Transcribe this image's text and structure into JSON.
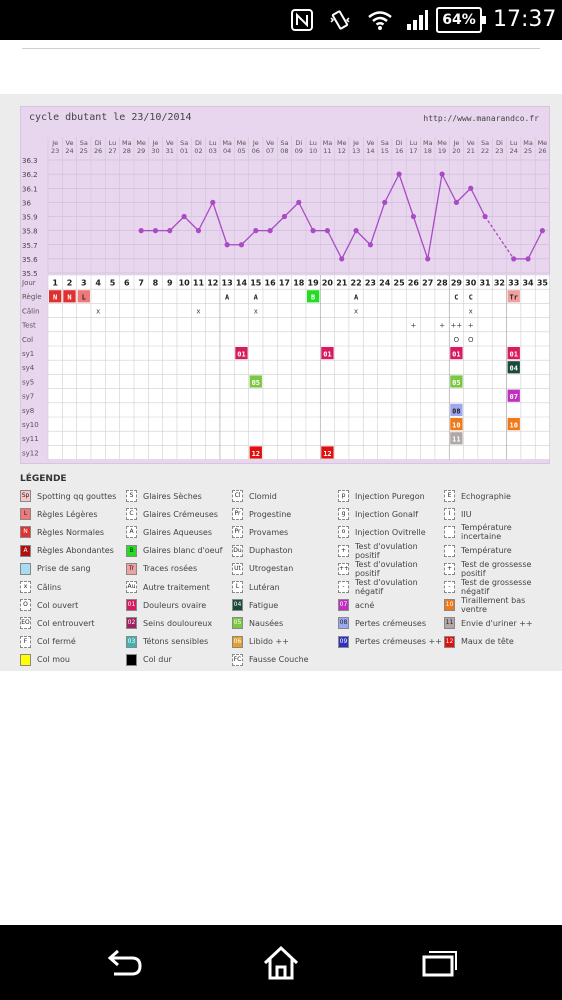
{
  "status_bar": {
    "time": "17:37",
    "battery": "64%",
    "icons": [
      "nfc-icon",
      "vibrate-icon",
      "wifi-icon",
      "signal-icon"
    ]
  },
  "chart": {
    "title": "cycle dbutant le 23/10/2014",
    "url": "http://www.manarandco.fr",
    "day_names": [
      "Je",
      "Ve",
      "Sa",
      "Di",
      "Lu",
      "Ma",
      "Me",
      "Je",
      "Ve",
      "Sa",
      "Di",
      "Lu",
      "Ma",
      "Me",
      "Je",
      "Ve",
      "Sa",
      "Di",
      "Lu",
      "Ma",
      "Me",
      "Je",
      "Ve",
      "Sa",
      "Di",
      "Lu",
      "Ma",
      "Me",
      "Je",
      "Ve",
      "Sa",
      "Di",
      "Lu",
      "Ma",
      "Me"
    ],
    "dates": [
      "23",
      "24",
      "25",
      "26",
      "27",
      "28",
      "29",
      "30",
      "31",
      "01",
      "02",
      "03",
      "04",
      "05",
      "06",
      "07",
      "08",
      "09",
      "10",
      "11",
      "12",
      "13",
      "14",
      "15",
      "16",
      "17",
      "18",
      "19",
      "20",
      "21",
      "22",
      "23",
      "24",
      "25",
      "26"
    ],
    "row_labels": [
      "Jour",
      "Règle",
      "Câlin",
      "Test",
      "Col",
      "sy1",
      "sy4",
      "sy5",
      "sy7",
      "sy8",
      "sy10",
      "sy11",
      "sy12"
    ],
    "temp_ticks": [
      "36.3",
      "36.2",
      "36.1",
      "36",
      "35.9",
      "35.8",
      "35.7",
      "35.6",
      "35.5"
    ],
    "cycle_days": [
      "1",
      "2",
      "3",
      "4",
      "5",
      "6",
      "7",
      "8",
      "9",
      "10",
      "11",
      "12",
      "13",
      "14",
      "15",
      "16",
      "17",
      "18",
      "19",
      "20",
      "21",
      "22",
      "23",
      "24",
      "25",
      "26",
      "27",
      "28",
      "29",
      "30",
      "31",
      "32",
      "33",
      "34",
      "35"
    ],
    "temps": [
      null,
      null,
      null,
      null,
      null,
      null,
      35.8,
      35.8,
      35.8,
      35.9,
      35.8,
      36.0,
      35.7,
      35.7,
      35.8,
      35.8,
      35.9,
      36.0,
      35.8,
      35.8,
      35.6,
      35.8,
      35.7,
      36.0,
      36.2,
      35.9,
      35.6,
      36.2,
      36.0,
      36.1,
      35.9,
      null,
      35.6,
      35.6,
      35.8
    ],
    "regle_cells": [
      {
        "col": 1,
        "text": "N",
        "color": "#e03030"
      },
      {
        "col": 2,
        "text": "N",
        "color": "#e03030"
      },
      {
        "col": 3,
        "text": "L",
        "color": "#f07878"
      },
      {
        "col": 13,
        "text": "A",
        "color": "#ffffff"
      },
      {
        "col": 15,
        "text": "A",
        "color": "#ffffff"
      },
      {
        "col": 19,
        "text": "B",
        "color": "#22dd22"
      },
      {
        "col": 22,
        "text": "A",
        "color": "#ffffff"
      },
      {
        "col": 29,
        "text": "C",
        "color": "#ffffff"
      },
      {
        "col": 30,
        "text": "C",
        "color": "#ffffff"
      },
      {
        "col": 33,
        "text": "Tr",
        "color": "#f0a0a0"
      }
    ],
    "calin_cols": [
      4,
      11,
      15,
      22,
      30
    ],
    "calin_mark": "x",
    "test_cells": [
      {
        "col": 26,
        "text": "+"
      },
      {
        "col": 28,
        "text": "+"
      },
      {
        "col": 29,
        "text": "++"
      },
      {
        "col": 30,
        "text": "+"
      }
    ],
    "col_cells": [
      {
        "col": 29,
        "text": "O"
      },
      {
        "col": 30,
        "text": "O"
      }
    ],
    "sym_cells": [
      {
        "row": 5,
        "col": 14,
        "text": "01",
        "color": "#d81b60"
      },
      {
        "row": 5,
        "col": 20,
        "text": "01",
        "color": "#d81b60"
      },
      {
        "row": 5,
        "col": 29,
        "text": "01",
        "color": "#d81b60"
      },
      {
        "row": 5,
        "col": 33,
        "text": "01",
        "color": "#d81b60"
      },
      {
        "row": 6,
        "col": 33,
        "text": "04",
        "color": "#1a4a3a"
      },
      {
        "row": 7,
        "col": 15,
        "text": "05",
        "color": "#7cc843"
      },
      {
        "row": 7,
        "col": 29,
        "text": "05",
        "color": "#7cc843"
      },
      {
        "row": 8,
        "col": 33,
        "text": "07",
        "color": "#c030c0"
      },
      {
        "row": 9,
        "col": 29,
        "text": "08",
        "color": "#9ea8f0"
      },
      {
        "row": 10,
        "col": 29,
        "text": "10",
        "color": "#f07a1a"
      },
      {
        "row": 10,
        "col": 33,
        "text": "10",
        "color": "#f07a1a"
      },
      {
        "row": 11,
        "col": 29,
        "text": "11",
        "color": "#b0a8a8"
      },
      {
        "row": 12,
        "col": 15,
        "text": "12",
        "color": "#e01010"
      },
      {
        "row": 12,
        "col": 20,
        "text": "12",
        "color": "#e01010"
      }
    ]
  },
  "legend": {
    "title": "LÉGENDE",
    "items": [
      {
        "sym": "Sp",
        "text": "Spotting qq gouttes",
        "color": "#f8c8c8",
        "col": 0,
        "row": 0
      },
      {
        "sym": "S",
        "text": "Glaires Sèches",
        "color": "#ffffff",
        "col": 1,
        "row": 0
      },
      {
        "sym": "Cl",
        "text": "Clomid",
        "color": "#ffffff",
        "col": 2,
        "row": 0
      },
      {
        "sym": "p",
        "text": "Injection Puregon",
        "color": "#ffffff",
        "col": 3,
        "row": 0
      },
      {
        "sym": "E",
        "text": "Echographie",
        "color": "#ffffff",
        "col": 4,
        "row": 0
      },
      {
        "sym": "L",
        "text": "Règles Légères",
        "color": "#f07878",
        "col": 0,
        "row": 1
      },
      {
        "sym": "C",
        "text": "Glaires Crémeuses",
        "color": "#ffffff",
        "col": 1,
        "row": 1
      },
      {
        "sym": "Pr",
        "text": "Progestine",
        "color": "#ffffff",
        "col": 2,
        "row": 1
      },
      {
        "sym": "g",
        "text": "Injection GonaIf",
        "color": "#ffffff",
        "col": 3,
        "row": 1
      },
      {
        "sym": "I",
        "text": "IIU",
        "color": "#ffffff",
        "col": 4,
        "row": 1
      },
      {
        "sym": "N",
        "text": "Règles Normales",
        "color": "#e03030",
        "col": 0,
        "row": 2
      },
      {
        "sym": "A",
        "text": "Glaires Aqueuses",
        "color": "#ffffff",
        "col": 1,
        "row": 2
      },
      {
        "sym": "Pr",
        "text": "Provames",
        "color": "#ffffff",
        "col": 2,
        "row": 2
      },
      {
        "sym": "o",
        "text": "Injection Ovitrelle",
        "color": "#ffffff",
        "col": 3,
        "row": 2
      },
      {
        "sym": "",
        "text": "Température incertaine",
        "color": "#ffffff",
        "col": 4,
        "row": 2
      },
      {
        "sym": "A",
        "text": "Règles Abondantes",
        "color": "#b01010",
        "col": 0,
        "row": 3
      },
      {
        "sym": "B",
        "text": "Glaires blanc d'oeuf",
        "color": "#22dd22",
        "col": 1,
        "row": 3
      },
      {
        "sym": "Du",
        "text": "Duphaston",
        "color": "#ffffff",
        "col": 2,
        "row": 3
      },
      {
        "sym": "+",
        "text": "Test d'ovulation positif",
        "color": "#ffffff",
        "col": 3,
        "row": 3
      },
      {
        "sym": "",
        "text": "Température",
        "color": "#ffffff",
        "col": 4,
        "row": 3
      },
      {
        "sym": "",
        "text": "Prise de sang",
        "color": "#a8dcf0",
        "col": 0,
        "row": 4
      },
      {
        "sym": "Tr",
        "text": "Traces rosées",
        "color": "#f0a0a0",
        "col": 1,
        "row": 4
      },
      {
        "sym": "Ut",
        "text": "Utrogestan",
        "color": "#ffffff",
        "col": 2,
        "row": 4
      },
      {
        "sym": "++",
        "text": "Test d'ovulation positif",
        "color": "#ffffff",
        "col": 3,
        "row": 4
      },
      {
        "sym": "+",
        "text": "Test de grossesse positif",
        "color": "#ffffff",
        "col": 4,
        "row": 4
      },
      {
        "sym": "x",
        "text": "Câlins",
        "color": "#ffffff",
        "col": 0,
        "row": 5
      },
      {
        "sym": "Au",
        "text": "Autre traitement",
        "color": "#ffffff",
        "col": 1,
        "row": 5
      },
      {
        "sym": "L",
        "text": "Lutéran",
        "color": "#ffffff",
        "col": 2,
        "row": 5
      },
      {
        "sym": "-",
        "text": "Test d'ovulation négatif",
        "color": "#ffffff",
        "col": 3,
        "row": 5
      },
      {
        "sym": "-",
        "text": "Test de grossesse négatif",
        "color": "#ffffff",
        "col": 4,
        "row": 5
      },
      {
        "sym": "O",
        "text": "Col ouvert",
        "color": "#ffffff",
        "col": 0,
        "row": 6
      },
      {
        "sym": "01",
        "text": "Douleurs ovaire",
        "color": "#d81b60",
        "col": 1,
        "row": 6
      },
      {
        "sym": "04",
        "text": "Fatigue",
        "color": "#1a4a3a",
        "col": 2,
        "row": 6
      },
      {
        "sym": "07",
        "text": "acné",
        "color": "#c030c0",
        "col": 3,
        "row": 6
      },
      {
        "sym": "10",
        "text": "Tiraillement bas ventre",
        "color": "#f07a1a",
        "col": 4,
        "row": 6
      },
      {
        "sym": "EO",
        "text": "Col entrouvert",
        "color": "#ffffff",
        "col": 0,
        "row": 7
      },
      {
        "sym": "02",
        "text": "Seins douloureux",
        "color": "#a02060",
        "col": 1,
        "row": 7
      },
      {
        "sym": "05",
        "text": "Nausées",
        "color": "#7cc843",
        "col": 2,
        "row": 7
      },
      {
        "sym": "08",
        "text": "Pertes crémeuses",
        "color": "#9ea8f0",
        "col": 3,
        "row": 7
      },
      {
        "sym": "11",
        "text": "Envie d'uriner ++",
        "color": "#b0a8a8",
        "col": 4,
        "row": 7
      },
      {
        "sym": "F",
        "text": "Col fermé",
        "color": "#ffffff",
        "col": 0,
        "row": 8
      },
      {
        "sym": "03",
        "text": "Tétons sensibles",
        "color": "#40b0b0",
        "col": 1,
        "row": 8
      },
      {
        "sym": "06",
        "text": "Libido ++",
        "color": "#e0a030",
        "col": 2,
        "row": 8
      },
      {
        "sym": "09",
        "text": "Pertes crémeuses ++",
        "color": "#3030c0",
        "col": 3,
        "row": 8
      },
      {
        "sym": "12",
        "text": "Maux de tête",
        "color": "#e01010",
        "col": 4,
        "row": 8
      },
      {
        "sym": "",
        "text": "Col mou",
        "color": "#ffff00",
        "col": 0,
        "row": 9
      },
      {
        "sym": "",
        "text": "Col dur",
        "color": "#000000",
        "col": 1,
        "row": 9
      },
      {
        "sym": "FC",
        "text": "Fausse Couche",
        "color": "#ffffff",
        "col": 2,
        "row": 9
      }
    ]
  },
  "nav": {
    "icons": [
      "back-icon",
      "home-icon",
      "recents-icon"
    ]
  }
}
